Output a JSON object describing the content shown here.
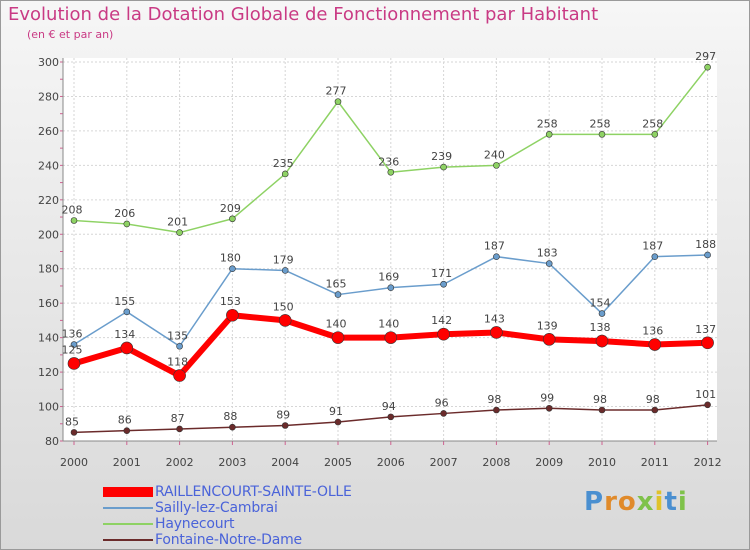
{
  "header": {
    "title": "Evolution de la Dotation Globale de Fonctionnement par Habitant",
    "subtitle": "(en € et par an)"
  },
  "chart_data": {
    "type": "line",
    "title": "Evolution de la Dotation Globale de Fonctionnement par Habitant",
    "subtitle": "(en € et par an)",
    "xlabel": "",
    "ylabel": "",
    "ylim": [
      80,
      300
    ],
    "yticks": [
      80,
      100,
      120,
      140,
      160,
      180,
      200,
      220,
      240,
      260,
      280,
      300
    ],
    "grid": true,
    "categories": [
      "2000",
      "2001",
      "2002",
      "2003",
      "2004",
      "2005",
      "2006",
      "2007",
      "2008",
      "2009",
      "2010",
      "2011",
      "2012"
    ],
    "series": [
      {
        "name": "Fontaine-Notre-Dame",
        "color": "#6b2b2b",
        "values": [
          85,
          86,
          87,
          88,
          89,
          91,
          94,
          96,
          98,
          99,
          98,
          98,
          101
        ],
        "labels": [
          "85",
          "86",
          "87",
          "88",
          "89",
          "91",
          "94",
          "96",
          "98",
          "99",
          "98",
          "98",
          "101"
        ]
      },
      {
        "name": "Haynecourt",
        "color": "#8ed264",
        "values": [
          208,
          206,
          201,
          209,
          235,
          277,
          236,
          239,
          240,
          258,
          258,
          258,
          297
        ],
        "labels": [
          "208",
          "206",
          "201",
          "209",
          "235",
          "277",
          "236",
          "239",
          "240",
          "258",
          "258",
          "258",
          "297"
        ]
      },
      {
        "name": "Sailly-lez-Cambrai",
        "color": "#6a9dcc",
        "values": [
          136,
          155,
          135,
          180,
          179,
          165,
          169,
          171,
          187,
          183,
          154,
          187,
          188
        ],
        "labels": [
          "136",
          "155",
          "135",
          "180",
          "179",
          "165",
          "169",
          "171",
          "187",
          "183",
          "154",
          "187",
          "188"
        ]
      },
      {
        "name": "RAILLENCOURT-SAINTE-OLLE",
        "color": "#ff0000",
        "values": [
          125,
          134,
          118,
          153,
          150,
          140,
          140,
          142,
          143,
          139,
          138,
          136,
          137
        ],
        "labels": [
          "125",
          "134",
          "118",
          "153",
          "150",
          "140",
          "140",
          "142",
          "143",
          "139",
          "138",
          "136",
          "137"
        ]
      }
    ],
    "legend": [
      {
        "name": "RAILLENCOURT-SAINTE-OLLE",
        "color": "#ff0000"
      },
      {
        "name": "Sailly-lez-Cambrai",
        "color": "#6a9dcc"
      },
      {
        "name": "Haynecourt",
        "color": "#8ed264"
      },
      {
        "name": "Fontaine-Notre-Dame",
        "color": "#6b2b2b"
      }
    ]
  },
  "branding": {
    "logo_letters": [
      "P",
      "r",
      "o",
      "x",
      "i",
      "t",
      "i"
    ],
    "logo_colors": [
      "#4a8fd0",
      "#e08a2a",
      "#e08a2a",
      "#7fc24a",
      "#e0c22a",
      "#4a8fd0",
      "#7fc24a"
    ]
  }
}
